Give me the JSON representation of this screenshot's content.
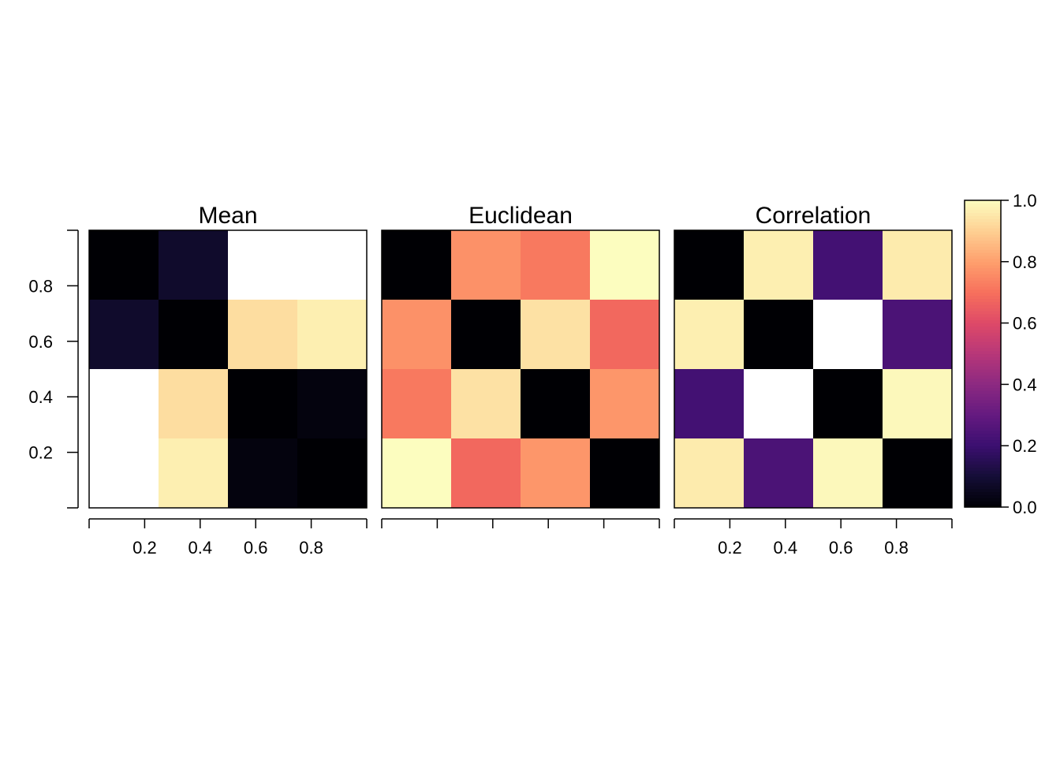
{
  "chart_data": [
    {
      "type": "heatmap",
      "title": "Mean",
      "rows_top_to_bottom": [
        [
          0.0,
          0.08,
          null,
          null
        ],
        [
          0.08,
          0.0,
          0.93,
          0.97
        ],
        [
          null,
          0.93,
          0.0,
          0.02
        ],
        [
          null,
          0.97,
          0.02,
          0.0
        ]
      ],
      "x_ticks": [
        "0.2",
        "0.4",
        "0.6",
        "0.8"
      ],
      "y_ticks": [
        "0.2",
        "0.4",
        "0.6",
        "0.8"
      ]
    },
    {
      "type": "heatmap",
      "title": "Euclidean",
      "rows_top_to_bottom": [
        [
          0.0,
          0.77,
          0.72,
          1.0
        ],
        [
          0.77,
          0.0,
          0.94,
          0.68
        ],
        [
          0.72,
          0.94,
          0.0,
          0.78
        ],
        [
          1.0,
          0.68,
          0.78,
          0.0
        ]
      ],
      "x_ticks": [],
      "y_ticks": []
    },
    {
      "type": "heatmap",
      "title": "Correlation",
      "rows_top_to_bottom": [
        [
          0.0,
          0.97,
          0.22,
          0.96
        ],
        [
          0.97,
          0.0,
          null,
          0.24
        ],
        [
          0.22,
          null,
          0.0,
          0.99
        ],
        [
          0.96,
          0.24,
          0.99,
          0.0
        ]
      ],
      "x_ticks": [
        "0.2",
        "0.4",
        "0.6",
        "0.8"
      ],
      "y_ticks": []
    }
  ],
  "colorbar": {
    "range": [
      0,
      1
    ],
    "tick_values": [
      0.0,
      0.2,
      0.4,
      0.6,
      0.8,
      1.0
    ],
    "tick_labels": [
      "0.0",
      "0.2",
      "0.4",
      "0.6",
      "0.8",
      "1.0"
    ],
    "palette": "magma",
    "missing_color": "#ffffff"
  }
}
